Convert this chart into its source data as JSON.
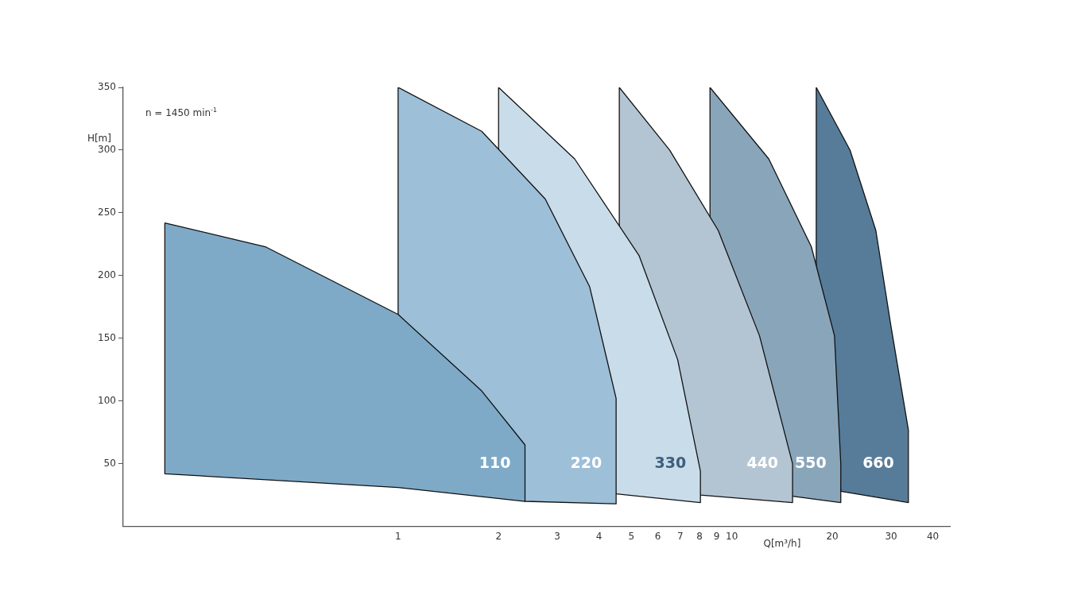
{
  "chart_data": {
    "type": "area",
    "xlabel": "Q[m³/h]",
    "ylabel": "H[m]",
    "annotations": [
      "n = 1450 min$^{-1}$"
    ],
    "log": "x",
    "xlim": [
      0.15,
      45
    ],
    "xticks": [
      1,
      2,
      3,
      4,
      5,
      6,
      7,
      8,
      9,
      10,
      20,
      30,
      40
    ],
    "ylim": [
      0,
      350
    ],
    "yticks": [
      50,
      100,
      150,
      200,
      250,
      300,
      350
    ],
    "grid": false,
    "legend": false,
    "series": [
      {
        "name": "110",
        "color": "#7eaac8",
        "x": [
          0.2,
          0.4,
          1,
          1.78,
          2.4,
          2.4,
          1,
          0.2
        ],
        "values": [
          242,
          223,
          169,
          108,
          65,
          20,
          31,
          42
        ]
      },
      {
        "name": "220",
        "color": "#9dbfd8",
        "x": [
          1,
          1.78,
          2.76,
          3.75,
          4.5,
          4.5,
          2.4,
          1
        ],
        "values": [
          350,
          315,
          261,
          191,
          102,
          18,
          20,
          169
        ]
      },
      {
        "name": "330",
        "color": "#c9dcea",
        "x": [
          2,
          3.38,
          5.27,
          6.88,
          8.05,
          8.05,
          4.5,
          2
        ],
        "values": [
          350,
          293,
          216,
          133,
          44,
          19,
          26,
          301
        ]
      },
      {
        "name": "440",
        "color": "#b3c5d3",
        "x": [
          4.6,
          6.51,
          9.1,
          12.1,
          15.2,
          15.2,
          8.05,
          4.6
        ],
        "values": [
          350,
          300,
          236,
          152,
          50,
          19,
          25,
          236
        ]
      },
      {
        "name": "550",
        "color": "#89a5ba",
        "x": [
          8.6,
          12.9,
          17.3,
          20.3,
          21.2,
          21.2,
          15.2,
          8.6
        ],
        "values": [
          350,
          293,
          223,
          152,
          50,
          19,
          24,
          247
        ]
      },
      {
        "name": "660",
        "color": "#567c99",
        "x": [
          17.9,
          22.6,
          27,
          30,
          33.8,
          33.8,
          21.2,
          17.9
        ],
        "values": [
          350,
          300,
          236,
          159,
          77,
          19,
          28,
          208
        ]
      }
    ]
  }
}
